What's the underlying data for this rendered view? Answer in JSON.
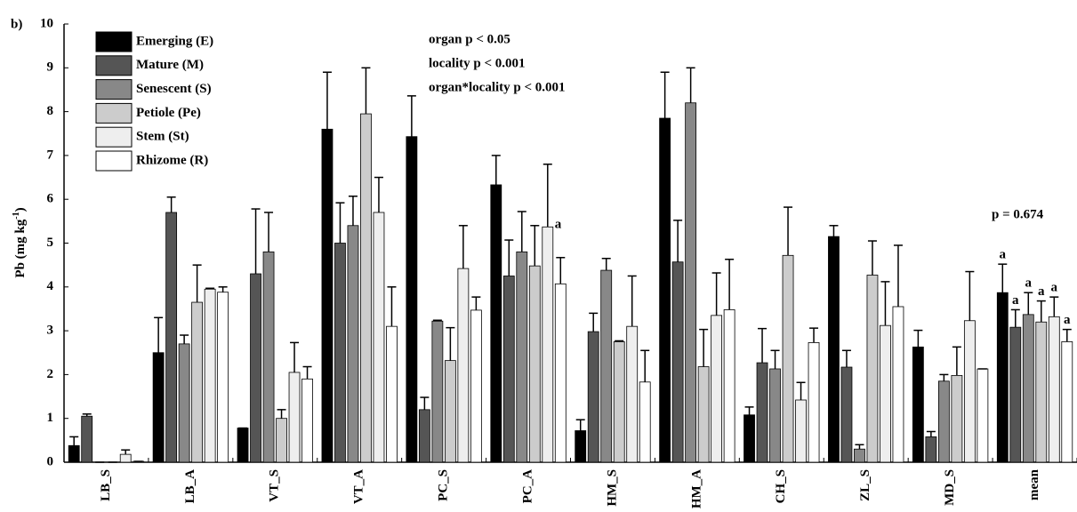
{
  "chart_data": {
    "type": "bar",
    "panel_label": "b)",
    "ylabel": "Pb (mg kg",
    "ylabel_sup": "-1",
    "ylabel_end": ")",
    "categories": [
      "LB_S",
      "LB_A",
      "VT_S",
      "VT_A",
      "PC_S",
      "PC_A",
      "HM_S",
      "HM_A",
      "CH_S",
      "ZL_S",
      "MD_S",
      "mean"
    ],
    "series": [
      {
        "name": "Emerging (E)",
        "color": "#000000",
        "values": [
          0.38,
          2.5,
          0.78,
          7.6,
          7.43,
          6.33,
          0.72,
          7.85,
          1.08,
          5.15,
          2.63,
          3.87
        ],
        "errors": [
          0.2,
          0.8,
          0,
          1.3,
          0.93,
          0.67,
          0.25,
          1.05,
          0.18,
          0.25,
          0.38,
          0.65
        ]
      },
      {
        "name": "Mature (M)",
        "color": "#555555",
        "values": [
          1.05,
          5.7,
          4.3,
          5.0,
          1.2,
          4.25,
          2.98,
          4.57,
          2.27,
          2.17,
          0.58,
          3.08
        ],
        "errors": [
          0.05,
          0.35,
          1.48,
          0.92,
          0.28,
          0.82,
          0.42,
          0.95,
          0.78,
          0.38,
          0.12,
          0.4
        ]
      },
      {
        "name": "Senescent (S)",
        "color": "#888888",
        "values": [
          0,
          2.7,
          4.8,
          5.4,
          3.22,
          4.8,
          4.38,
          8.2,
          2.13,
          0.3,
          1.85,
          3.37
        ],
        "errors": [
          0,
          0.2,
          0.9,
          0.67,
          0.02,
          0.92,
          0.27,
          0.8,
          0.42,
          0.1,
          0.15,
          0.5
        ]
      },
      {
        "name": "Petiole (Pe)",
        "color": "#cccccc",
        "values": [
          0,
          3.65,
          1.0,
          7.95,
          2.32,
          4.48,
          2.75,
          2.18,
          4.72,
          4.27,
          1.98,
          3.2
        ],
        "errors": [
          0,
          0.85,
          0.2,
          1.05,
          0.75,
          0.92,
          0.02,
          0.85,
          1.1,
          0.78,
          0.65,
          0.48
        ]
      },
      {
        "name": "Stem (St)",
        "color": "#eeeeee",
        "values": [
          0.18,
          3.95,
          2.05,
          5.7,
          4.42,
          5.37,
          3.1,
          3.35,
          1.42,
          3.12,
          3.23,
          3.32
        ],
        "errors": [
          0.1,
          0.02,
          0.68,
          0.8,
          0.98,
          1.43,
          1.15,
          0.97,
          0.4,
          1.0,
          1.12,
          0.45
        ]
      },
      {
        "name": "Rhizome (R)",
        "color": "#ffffff",
        "values": [
          0.02,
          3.88,
          1.9,
          3.1,
          3.47,
          4.07,
          1.83,
          3.48,
          2.73,
          3.55,
          2.13,
          2.75
        ],
        "errors": [
          0,
          0.12,
          0.28,
          0.9,
          0.3,
          0.6,
          0.72,
          1.15,
          0.33,
          1.4,
          0,
          0.28
        ]
      }
    ],
    "annotations": [
      "organ p < 0.05",
      "locality p < 0.001",
      "organ*locality p < 0.001",
      "p = 0.674"
    ],
    "group_letters": [
      "a",
      "a",
      "a",
      "a",
      "a",
      "a"
    ],
    "extra_letter": "a",
    "ylim": [
      0,
      10
    ],
    "yticks": [
      0,
      1,
      2,
      3,
      4,
      5,
      6,
      7,
      8,
      9,
      10
    ],
    "grid": false
  }
}
